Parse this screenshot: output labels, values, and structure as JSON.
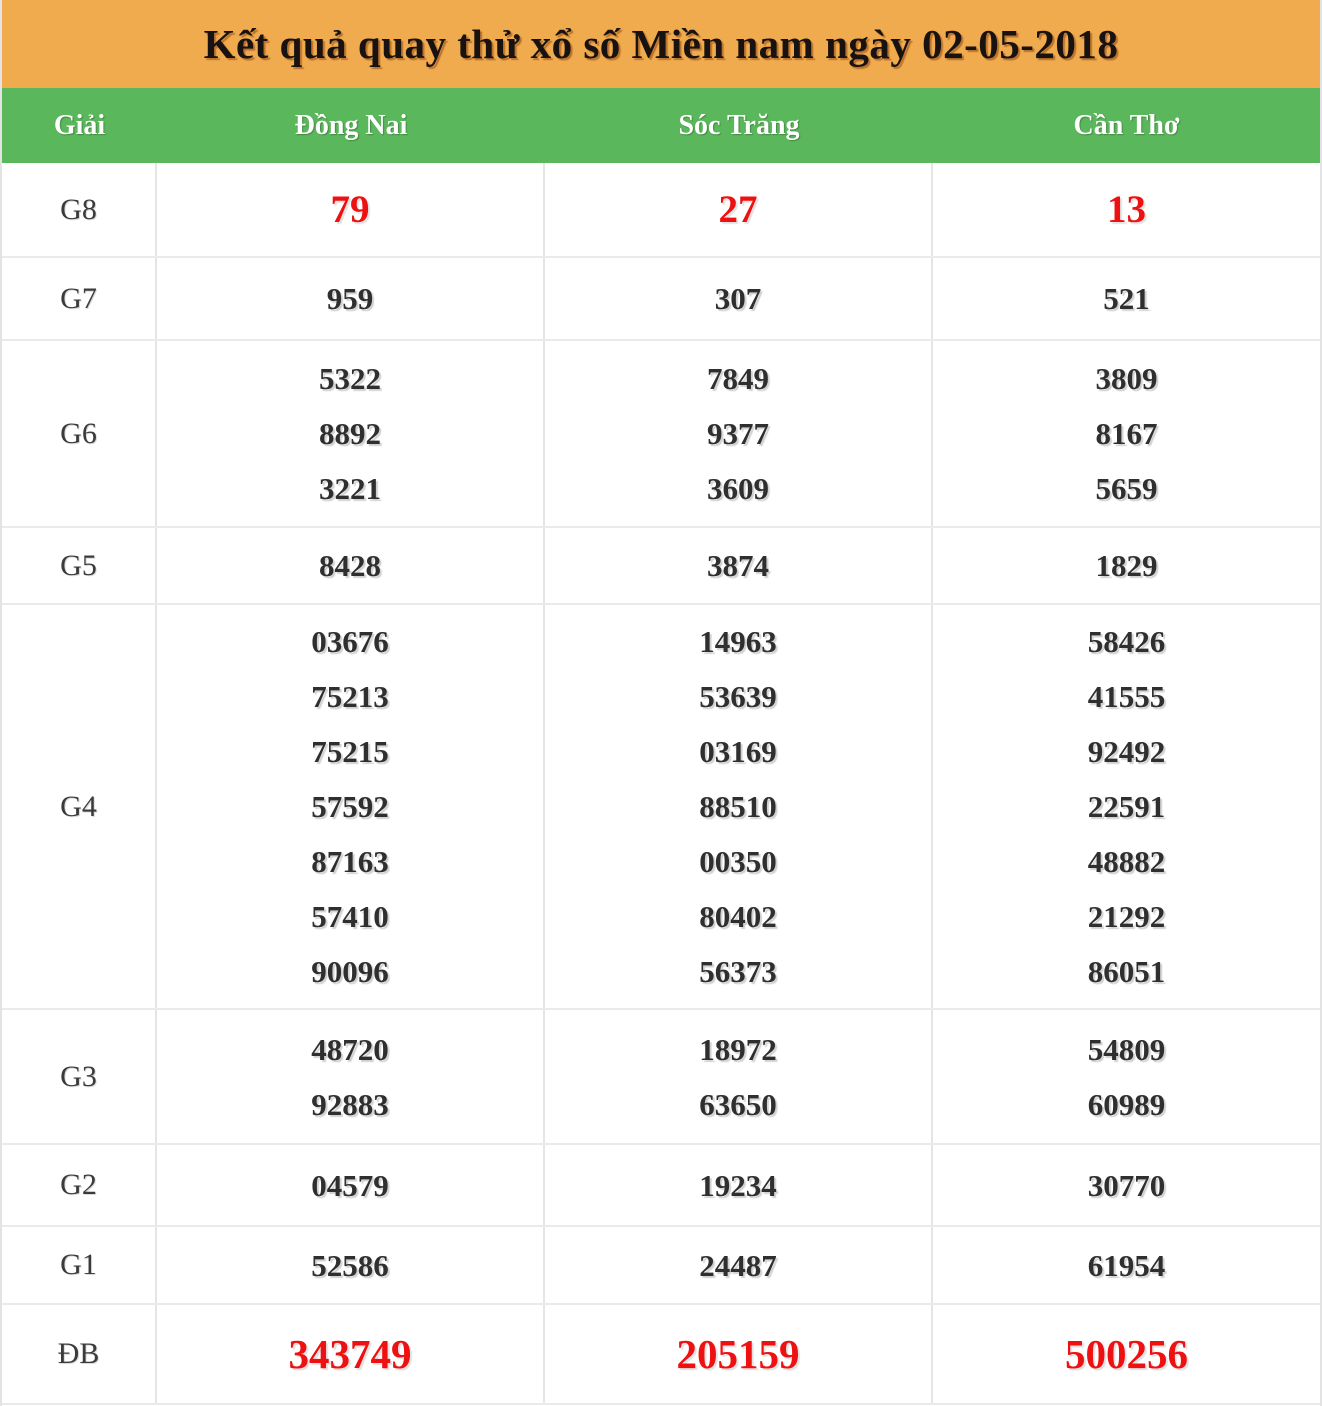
{
  "title": "Kết quả quay thử xổ số Miền nam ngày 02-05-2018",
  "columns": [
    "Giải",
    "Đồng Nai",
    "Sóc Trăng",
    "Cần Thơ"
  ],
  "colors": {
    "title_bar_bg": "#efab4e",
    "title_color": "#181210",
    "column_header_bg": "#5bb75b",
    "column_header_text": "#ffffff",
    "number_color": "#2f2f2f",
    "highlight_color": "#ee1111",
    "border_color": "#e3e3e3"
  },
  "rows": [
    {
      "label": "G8",
      "highlight": true,
      "values": [
        [
          "79"
        ],
        [
          "27"
        ],
        [
          "13"
        ]
      ]
    },
    {
      "label": "G7",
      "highlight": false,
      "values": [
        [
          "959"
        ],
        [
          "307"
        ],
        [
          "521"
        ]
      ]
    },
    {
      "label": "G6",
      "highlight": false,
      "values": [
        [
          "5322",
          "8892",
          "3221"
        ],
        [
          "7849",
          "9377",
          "3609"
        ],
        [
          "3809",
          "8167",
          "5659"
        ]
      ]
    },
    {
      "label": "G5",
      "highlight": false,
      "values": [
        [
          "8428"
        ],
        [
          "3874"
        ],
        [
          "1829"
        ]
      ]
    },
    {
      "label": "G4",
      "highlight": false,
      "values": [
        [
          "03676",
          "75213",
          "75215",
          "57592",
          "87163",
          "57410",
          "90096"
        ],
        [
          "14963",
          "53639",
          "03169",
          "88510",
          "00350",
          "80402",
          "56373"
        ],
        [
          "58426",
          "41555",
          "92492",
          "22591",
          "48882",
          "21292",
          "86051"
        ]
      ]
    },
    {
      "label": "G3",
      "highlight": false,
      "values": [
        [
          "48720",
          "92883"
        ],
        [
          "18972",
          "63650"
        ],
        [
          "54809",
          "60989"
        ]
      ]
    },
    {
      "label": "G2",
      "highlight": false,
      "values": [
        [
          "04579"
        ],
        [
          "19234"
        ],
        [
          "30770"
        ]
      ]
    },
    {
      "label": "G1",
      "highlight": false,
      "values": [
        [
          "52586"
        ],
        [
          "24487"
        ],
        [
          "61954"
        ]
      ]
    },
    {
      "label": "ĐB",
      "highlight": true,
      "values": [
        [
          "343749"
        ],
        [
          "205159"
        ],
        [
          "500256"
        ]
      ]
    }
  ]
}
